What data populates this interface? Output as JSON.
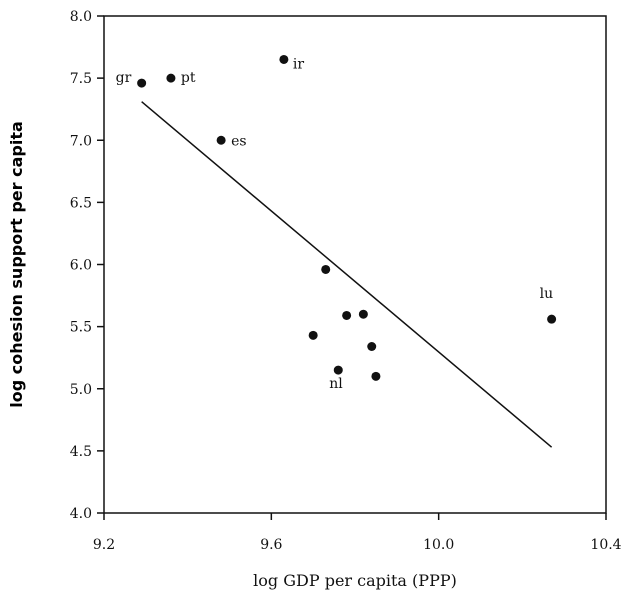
{
  "chart_data": {
    "type": "scatter",
    "title": "",
    "xlabel": "log GDP per capita (PPP)",
    "ylabel": "log cohesion support per capita",
    "xlim": [
      9.2,
      10.4
    ],
    "ylim": [
      4.0,
      8.0
    ],
    "xticks": [
      9.2,
      9.6,
      10.0,
      10.4
    ],
    "xtick_labels": [
      "9.2",
      "9.6",
      "10.0",
      "10.4"
    ],
    "yticks": [
      4.0,
      4.5,
      5.0,
      5.5,
      6.0,
      6.5,
      7.0,
      7.5,
      8.0
    ],
    "ytick_labels": [
      "4.0",
      "4.5",
      "5.0",
      "5.5",
      "6.0",
      "6.5",
      "7.0",
      "7.5",
      "8.0"
    ],
    "grid": false,
    "points": [
      {
        "x": 9.29,
        "y": 7.46,
        "label": "gr"
      },
      {
        "x": 9.36,
        "y": 7.5,
        "label": "pt"
      },
      {
        "x": 9.63,
        "y": 7.65,
        "label": "ir"
      },
      {
        "x": 9.48,
        "y": 7.0,
        "label": "es"
      },
      {
        "x": 9.73,
        "y": 5.96,
        "label": ""
      },
      {
        "x": 9.7,
        "y": 5.43,
        "label": ""
      },
      {
        "x": 9.78,
        "y": 5.59,
        "label": ""
      },
      {
        "x": 9.82,
        "y": 5.6,
        "label": ""
      },
      {
        "x": 9.84,
        "y": 5.34,
        "label": ""
      },
      {
        "x": 9.76,
        "y": 5.15,
        "label": "nl"
      },
      {
        "x": 9.85,
        "y": 5.1,
        "label": ""
      },
      {
        "x": 10.27,
        "y": 5.56,
        "label": "lu"
      }
    ],
    "fit_line": {
      "x": [
        9.29,
        10.27
      ],
      "y": [
        7.31,
        4.53
      ]
    }
  }
}
